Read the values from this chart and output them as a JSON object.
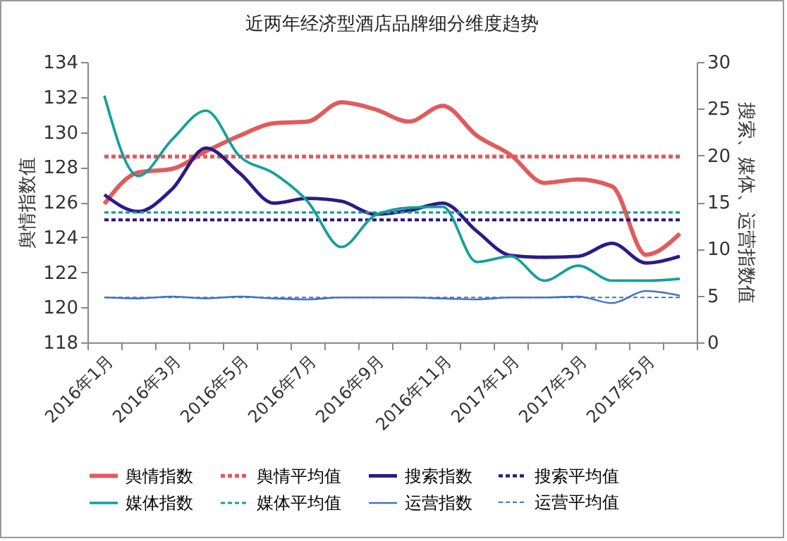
{
  "chart_data": {
    "type": "line",
    "title": "近两年经济型酒店品牌细分维度趋势",
    "ylabel": "舆情指数值",
    "y2label": "搜索、媒体、运营指数值",
    "categories": [
      "2016年1月",
      null,
      "2016年3月",
      null,
      "2016年5月",
      null,
      "2016年7月",
      null,
      "2016年9月",
      null,
      "2016年11月",
      null,
      "2017年1月",
      null,
      "2017年3月",
      null,
      "2017年5月",
      null
    ],
    "ylim": [
      118,
      134
    ],
    "yticks": [
      118,
      120,
      122,
      124,
      126,
      128,
      130,
      132,
      134
    ],
    "y2lim": [
      0,
      30
    ],
    "y2ticks": [
      0,
      5,
      10,
      15,
      20,
      25,
      30
    ],
    "grid": false,
    "legend": "bottom",
    "marker": "none",
    "series": [
      {
        "name": "舆情指数",
        "color": "#e05c5c",
        "line_style": "solid",
        "values": [
          125.9,
          127.7,
          127.9,
          128.9,
          129.8,
          130.5,
          130.6,
          131.7,
          131.3,
          130.6,
          131.5,
          129.8,
          128.7,
          127.1,
          127.3,
          126.9,
          123.0,
          124.2
        ]
      },
      {
        "name": "舆情平均值",
        "color": "#e05c5c",
        "line_style": "dashed",
        "values": [
          128.6,
          128.6,
          128.6,
          128.6,
          128.6,
          128.6,
          128.6,
          128.6,
          128.6,
          128.6,
          128.6,
          128.6,
          128.6,
          128.6,
          128.6,
          128.6,
          128.6,
          128.6
        ]
      },
      {
        "name": "搜索指数",
        "color": "#2e1a87",
        "line_style": "solid",
        "axis": "y2",
        "values": [
          15.8,
          14.0,
          16.4,
          20.8,
          18.1,
          14.9,
          15.4,
          15.1,
          13.7,
          14.1,
          14.9,
          11.9,
          9.3,
          9.1,
          9.2,
          10.6,
          8.5,
          9.2
        ]
      },
      {
        "name": "搜索平均值",
        "color": "#2e1a87",
        "line_style": "dashed",
        "axis": "y2",
        "values": [
          13.1,
          13.1,
          13.1,
          13.1,
          13.1,
          13.1,
          13.1,
          13.1,
          13.1,
          13.1,
          13.1,
          13.1,
          13.1,
          13.1,
          13.1,
          13.1,
          13.1,
          13.1
        ]
      },
      {
        "name": "媒体指数",
        "color": "#13a09a",
        "line_style": "solid",
        "axis": "y2",
        "values": [
          26.4,
          17.8,
          21.7,
          24.8,
          19.9,
          18.1,
          15.1,
          10.2,
          13.6,
          14.4,
          14.5,
          8.6,
          9.2,
          6.6,
          8.2,
          6.6,
          6.6,
          6.8
        ]
      },
      {
        "name": "媒体平均值",
        "color": "#13a09a",
        "line_style": "dashed",
        "axis": "y2",
        "values": [
          13.9,
          13.9,
          13.9,
          13.9,
          13.9,
          13.9,
          13.9,
          13.9,
          13.9,
          13.9,
          13.9,
          13.9,
          13.9,
          13.9,
          13.9,
          13.9,
          13.9,
          13.9
        ]
      },
      {
        "name": "运营指数",
        "color": "#4472c4",
        "line_style": "solid",
        "axis": "y2",
        "values": [
          4.8,
          4.7,
          4.9,
          4.7,
          4.9,
          4.7,
          4.6,
          4.8,
          4.8,
          4.8,
          4.7,
          4.6,
          4.8,
          4.8,
          4.9,
          4.2,
          5.5,
          5.0
        ]
      },
      {
        "name": "运营平均值",
        "color": "#4472c4",
        "line_style": "dashed",
        "axis": "y2",
        "values": [
          4.8,
          4.8,
          4.8,
          4.8,
          4.8,
          4.8,
          4.8,
          4.8,
          4.8,
          4.8,
          4.8,
          4.8,
          4.8,
          4.8,
          4.8,
          4.8,
          4.8,
          4.8
        ]
      }
    ]
  }
}
